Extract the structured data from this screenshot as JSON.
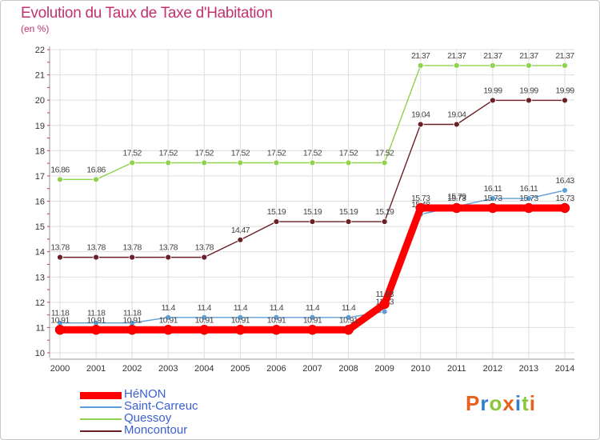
{
  "title": "Evolution du Taux de Taxe d'Habitation",
  "unit_label": "(en %)",
  "chart_data": {
    "type": "line",
    "title": "Evolution du Taux de Taxe d'Habitation",
    "ylabel": "(en %)",
    "xlabel": "",
    "ylim": [
      10,
      22
    ],
    "yticks": [
      10,
      11,
      12,
      13,
      14,
      15,
      16,
      17,
      18,
      19,
      20,
      21,
      22
    ],
    "grid": true,
    "legend_position": "bottom-left",
    "categories": [
      "2000",
      "2001",
      "2002",
      "2003",
      "2004",
      "2005",
      "2006",
      "2007",
      "2008",
      "2009",
      "2010",
      "2011",
      "2012",
      "2013",
      "2014"
    ],
    "series": [
      {
        "name": "Saint-Carreuc",
        "color": "#5f9fd8",
        "values": [
          11.18,
          11.18,
          11.18,
          11.4,
          11.4,
          11.4,
          11.4,
          11.4,
          11.4,
          11.63,
          15.48,
          15.79,
          16.11,
          16.11,
          16.43
        ]
      },
      {
        "name": "Quessoy",
        "color": "#8fd24c",
        "values": [
          16.86,
          16.86,
          17.52,
          17.52,
          17.52,
          17.52,
          17.52,
          17.52,
          17.52,
          17.52,
          21.37,
          21.37,
          21.37,
          21.37,
          21.37
        ]
      },
      {
        "name": "Moncontour",
        "color": "#6b1f26",
        "values": [
          13.78,
          13.78,
          13.78,
          13.78,
          13.78,
          14.47,
          15.19,
          15.19,
          15.19,
          15.19,
          19.04,
          19.04,
          19.99,
          19.99,
          19.99
        ]
      },
      {
        "name": "HéNON",
        "color": "#ff0000",
        "values": [
          10.91,
          10.91,
          10.91,
          10.91,
          10.91,
          10.91,
          10.91,
          10.91,
          10.91,
          11.93,
          15.73,
          15.73,
          15.73,
          15.73,
          15.73
        ]
      }
    ]
  },
  "legend": [
    {
      "name": "HéNON",
      "color": "#ff0000"
    },
    {
      "name": "Saint-Carreuc",
      "color": "#5f9fd8"
    },
    {
      "name": "Quessoy",
      "color": "#8fd24c"
    },
    {
      "name": "Moncontour",
      "color": "#6b1f26"
    }
  ],
  "logo": {
    "text": "Proxiti",
    "letters": [
      "P",
      "r",
      "o",
      "x",
      "i",
      "t",
      "i"
    ],
    "colors": [
      "#e8601c",
      "#2f7fc9",
      "#8cc63f",
      "#e8601c",
      "#2f7fc9",
      "#8cc63f",
      "#e8601c"
    ]
  }
}
